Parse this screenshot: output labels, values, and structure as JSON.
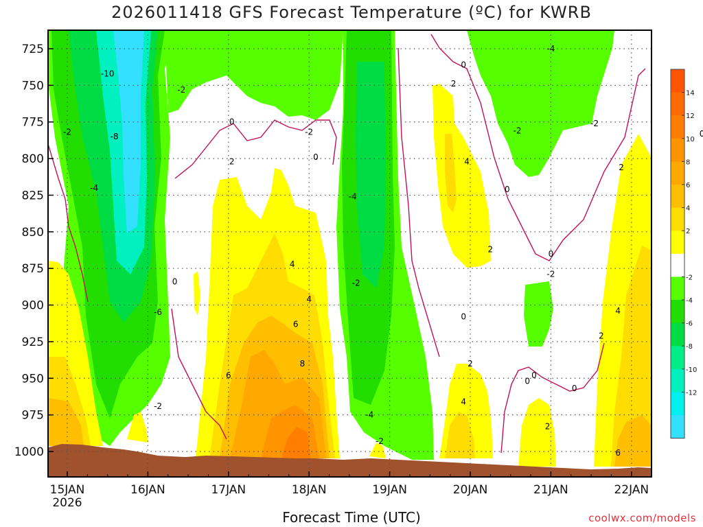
{
  "chart_data": {
    "type": "heatmap",
    "title": "2026011418 GFS Forecast Temperature (ºC) for KWRB",
    "xlabel": "Forecast Time (UTC)",
    "ylabel": "",
    "x_ticks": [
      "15JAN",
      "16JAN",
      "17JAN",
      "18JAN",
      "19JAN",
      "20JAN",
      "21JAN",
      "22JAN"
    ],
    "x_year": "2026",
    "y_ticks": [
      725,
      750,
      775,
      800,
      825,
      850,
      875,
      900,
      925,
      950,
      975,
      1000
    ],
    "ylim": [
      1010,
      705
    ],
    "grid": true,
    "colorbar": {
      "ticks": [
        14,
        12,
        10,
        8,
        6,
        4,
        2,
        -2,
        -4,
        -6,
        -8,
        -10,
        -12
      ],
      "colors": [
        "#ff5400",
        "#ff6a00",
        "#ff7e00",
        "#ff9400",
        "#ffa800",
        "#ffbe00",
        "#ffdd00",
        "#ffff00",
        "#ffffff",
        "#55ff00",
        "#22dd00",
        "#00dd44",
        "#00ee88",
        "#00f0c0",
        "#00f0f0",
        "#33e0ff"
      ]
    },
    "contour_labels": [
      {
        "text": "-10",
        "t": "2026-01-15T12:00",
        "p": 742
      },
      {
        "text": "-8",
        "t": "2026-01-15T14:00",
        "p": 785
      },
      {
        "text": "-4",
        "t": "2026-01-15T08:00",
        "p": 820
      },
      {
        "text": "-2",
        "t": "2026-01-15T00:00",
        "p": 782
      },
      {
        "text": "-6",
        "t": "2026-01-16T03:00",
        "p": 905
      },
      {
        "text": "-2",
        "t": "2026-01-16T03:00",
        "p": 969
      },
      {
        "text": "0",
        "t": "2026-01-16T08:00",
        "p": 884
      },
      {
        "text": "-2",
        "t": "2026-01-16T10:00",
        "p": 753
      },
      {
        "text": "0",
        "t": "2026-01-17T01:00",
        "p": 775
      },
      {
        "text": "2",
        "t": "2026-01-17T01:00",
        "p": 802
      },
      {
        "text": "-2",
        "t": "2026-01-18T00:00",
        "p": 782
      },
      {
        "text": "0",
        "t": "2026-01-18T02:00",
        "p": 799
      },
      {
        "text": "4",
        "t": "2026-01-17T19:00",
        "p": 872
      },
      {
        "text": "4",
        "t": "2026-01-18T00:00",
        "p": 896
      },
      {
        "text": "6",
        "t": "2026-01-17T20:00",
        "p": 913
      },
      {
        "text": "8",
        "t": "2026-01-17T22:00",
        "p": 940
      },
      {
        "text": "6",
        "t": "2026-01-17T00:00",
        "p": 948
      },
      {
        "text": "-4",
        "t": "2026-01-18T13:00",
        "p": 826
      },
      {
        "text": "-2",
        "t": "2026-01-18T14:00",
        "p": 885
      },
      {
        "text": "-4",
        "t": "2026-01-18T18:00",
        "p": 975
      },
      {
        "text": "-2",
        "t": "2026-01-18T21:00",
        "p": 993
      },
      {
        "text": "0",
        "t": "2026-01-19T22:00",
        "p": 736
      },
      {
        "text": "2",
        "t": "2026-01-19T19:00",
        "p": 749
      },
      {
        "text": "4",
        "t": "2026-01-19T23:00",
        "p": 802
      },
      {
        "text": "0",
        "t": "2026-01-20T11:00",
        "p": 821
      },
      {
        "text": "2",
        "t": "2026-01-20T06:00",
        "p": 862
      },
      {
        "text": "0",
        "t": "2026-01-19T22:00",
        "p": 908
      },
      {
        "text": "2",
        "t": "2026-01-20T00:00",
        "p": 940
      },
      {
        "text": "4",
        "t": "2026-01-19T22:00",
        "p": 966
      },
      {
        "text": "-4",
        "t": "2026-01-21T00:00",
        "p": 725
      },
      {
        "text": "-2",
        "t": "2026-01-20T14:00",
        "p": 781
      },
      {
        "text": "-2",
        "t": "2026-01-21T13:00",
        "p": 776
      },
      {
        "text": "0",
        "t": "2026-01-22T21:00",
        "p": 783
      },
      {
        "text": "2",
        "t": "2026-01-21T21:00",
        "p": 806
      },
      {
        "text": "0",
        "t": "2026-01-21T00:00",
        "p": 865
      },
      {
        "text": "-2",
        "t": "2026-01-21T00:00",
        "p": 879
      },
      {
        "text": "0",
        "t": "2026-01-20T17:00",
        "p": 952
      },
      {
        "text": "0",
        "t": "2026-01-20T19:00",
        "p": 948
      },
      {
        "text": "2",
        "t": "2026-01-20T23:00",
        "p": 983
      },
      {
        "text": "0",
        "t": "2026-01-21T07:00",
        "p": 957
      },
      {
        "text": "2",
        "t": "2026-01-21T15:00",
        "p": 921
      },
      {
        "text": "4",
        "t": "2026-01-21T20:00",
        "p": 904
      },
      {
        "text": "6",
        "t": "2026-01-21T20:00",
        "p": 1001
      }
    ]
  },
  "credit": "coolwx.com/models"
}
